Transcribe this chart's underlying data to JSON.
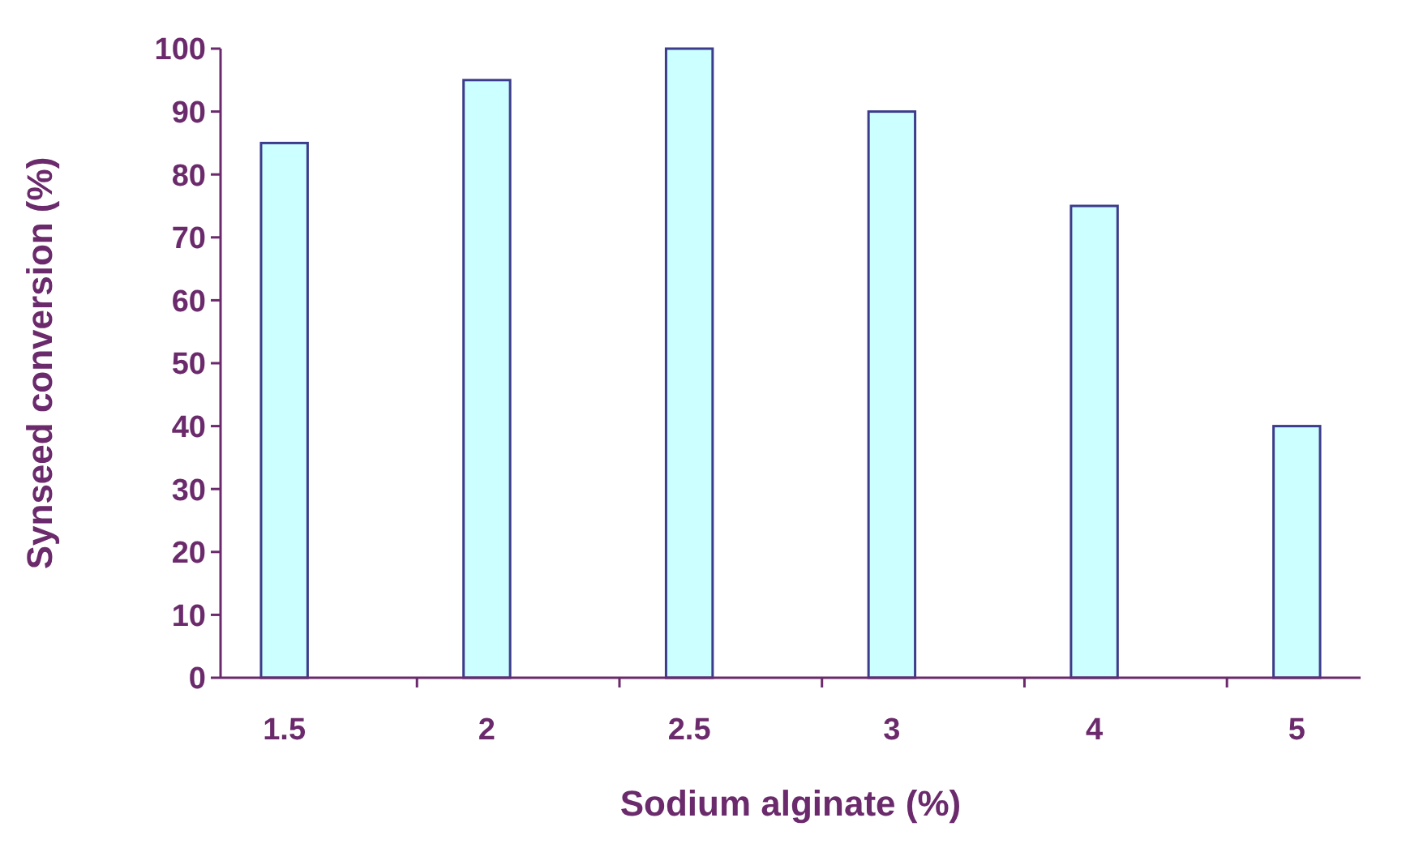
{
  "chart_data": {
    "type": "bar",
    "xlabel": "Sodium alginate (%)",
    "ylabel": "Synseed conversion (%)",
    "categories": [
      "1.5",
      "2",
      "2.5",
      "3",
      "4",
      "5"
    ],
    "values": [
      85,
      95,
      100,
      90,
      75,
      40
    ],
    "color": "#ccffff",
    "ylim": [
      0,
      100
    ],
    "yticks": [
      0,
      10,
      20,
      30,
      40,
      50,
      60,
      70,
      80,
      90,
      100
    ],
    "grid": false
  }
}
